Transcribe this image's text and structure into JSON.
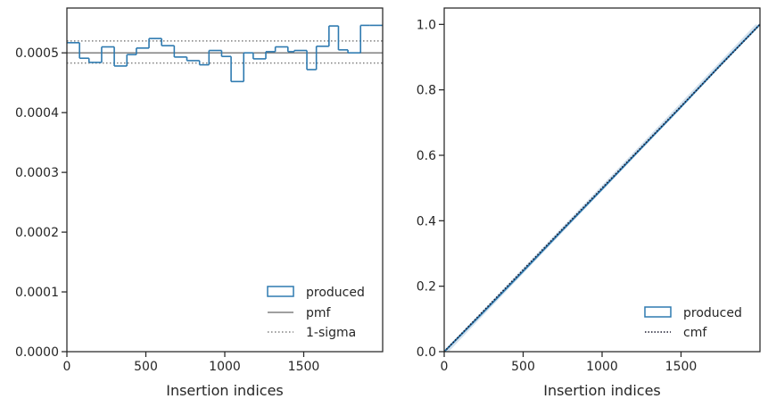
{
  "chart_data": [
    {
      "type": "step",
      "xlabel": "Insertion indices",
      "ylabel": "",
      "xlim": [
        0,
        2000
      ],
      "ylim": [
        0,
        0.000575
      ],
      "xticks": [
        0,
        500,
        1000,
        1500
      ],
      "xtick_labels": [
        "0",
        "500",
        "1000",
        "1500"
      ],
      "yticks": [
        0,
        0.0001,
        0.0002,
        0.0003,
        0.0004,
        0.0005
      ],
      "ytick_labels": [
        "0.0000",
        "0.0001",
        "0.0002",
        "0.0003",
        "0.0004",
        "0.0005"
      ],
      "grid": false,
      "legend_placement": "lower-right",
      "series": [
        {
          "name": "produced",
          "kind": "histogram-step",
          "color": "#2e7ab0",
          "bin_edges": [
            0,
            80,
            140,
            220,
            300,
            380,
            440,
            520,
            600,
            680,
            760,
            840,
            900,
            980,
            1040,
            1120,
            1180,
            1260,
            1320,
            1400,
            1440,
            1520,
            1580,
            1660,
            1720,
            1780,
            1860,
            1920,
            2000
          ],
          "values": [
            0.000517,
            0.000491,
            0.000484,
            0.00051,
            0.000478,
            0.000497,
            0.000508,
            0.000524,
            0.000512,
            0.000493,
            0.000487,
            0.00048,
            0.000504,
            0.000494,
            0.000452,
            0.0005,
            0.00049,
            0.000502,
            0.00051,
            0.000502,
            0.000504,
            0.000472,
            0.000511,
            0.000545,
            0.000505,
            0.0005,
            0.000546,
            0.000546
          ]
        },
        {
          "name": "pmf",
          "kind": "hline",
          "color": "#808080",
          "y": 0.0005
        },
        {
          "name": "1-sigma",
          "kind": "hline-pair",
          "color": "#808080",
          "y": [
            0.000483,
            0.00052
          ]
        }
      ]
    },
    {
      "type": "line",
      "xlabel": "Insertion indices",
      "ylabel": "",
      "xlim": [
        0,
        2000
      ],
      "ylim": [
        0,
        1.05
      ],
      "xticks": [
        0,
        500,
        1000,
        1500
      ],
      "xtick_labels": [
        "0",
        "500",
        "1000",
        "1500"
      ],
      "yticks": [
        0,
        0.2,
        0.4,
        0.6,
        0.8,
        1.0
      ],
      "ytick_labels": [
        "0.0",
        "0.2",
        "0.4",
        "0.6",
        "0.8",
        "1.0"
      ],
      "grid": false,
      "legend_placement": "lower-right",
      "band_color": "#c9dbea",
      "series": [
        {
          "name": "produced",
          "kind": "cumulative-step",
          "color": "#2e7ab0",
          "x": [
            0,
            250,
            500,
            750,
            1000,
            1250,
            1500,
            1750,
            2000
          ],
          "y": [
            0,
            0.122,
            0.246,
            0.372,
            0.497,
            0.623,
            0.748,
            0.876,
            1.0
          ]
        },
        {
          "name": "cmf",
          "kind": "dotted-line",
          "color": "#1a1a2e",
          "x": [
            0,
            2000
          ],
          "y": [
            0,
            1.0
          ]
        }
      ]
    }
  ],
  "legend": {
    "left": {
      "produced": "produced",
      "pmf": "pmf",
      "sigma": "1-sigma"
    },
    "right": {
      "produced": "produced",
      "cmf": "cmf"
    }
  }
}
